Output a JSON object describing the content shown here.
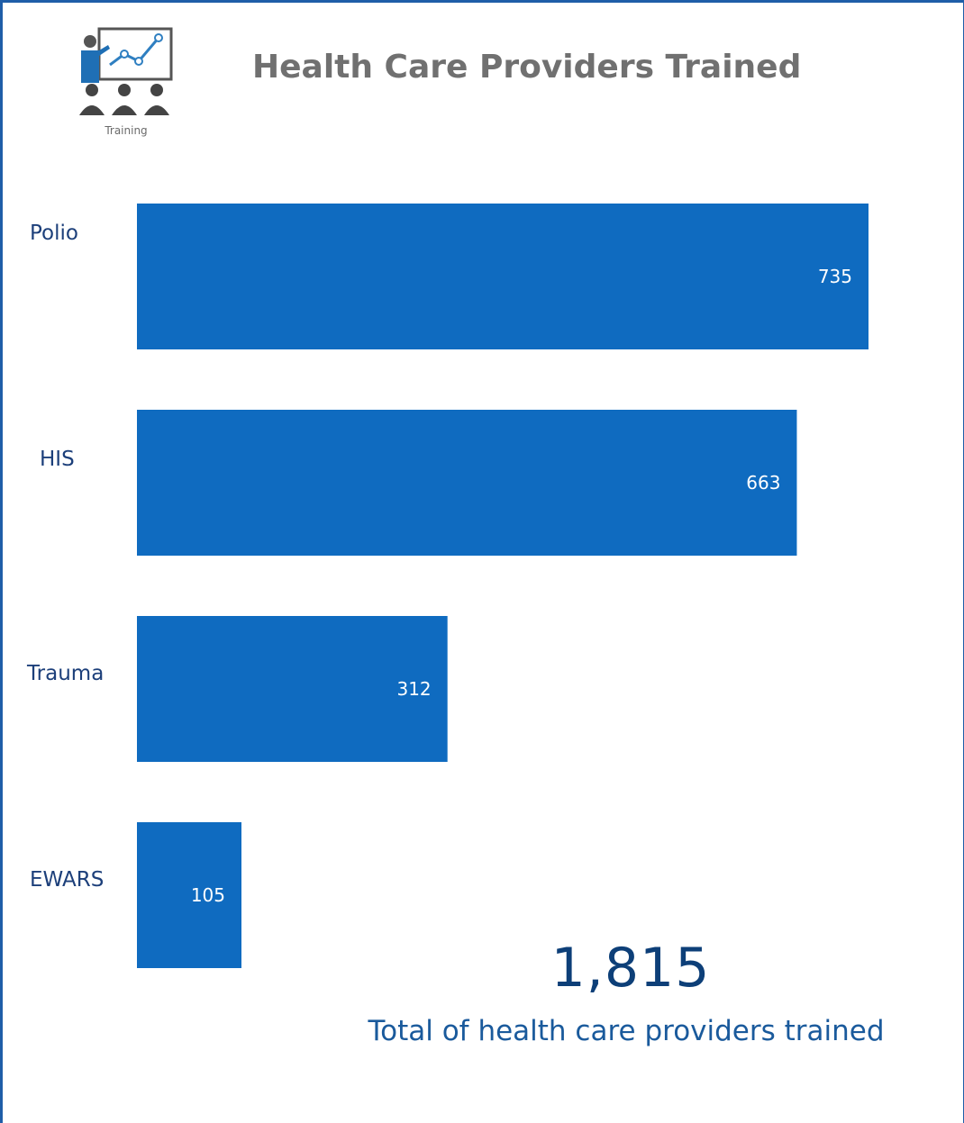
{
  "header": {
    "title": "Health Care Providers Trained",
    "logo_caption": "Training",
    "logo_icon": "training-presentation-icon"
  },
  "chart_data": {
    "type": "bar",
    "orientation": "horizontal",
    "categories": [
      "Polio",
      "HIS",
      "Trauma",
      "EWARS"
    ],
    "values": [
      735,
      663,
      312,
      105
    ],
    "title": "Health Care Providers Trained",
    "xlabel": "",
    "ylabel": "",
    "xlim": [
      0,
      735
    ],
    "grid": false,
    "color": "#0f6bc0"
  },
  "kpi": {
    "value": "1,815",
    "caption": "Total of health care providers trained"
  }
}
